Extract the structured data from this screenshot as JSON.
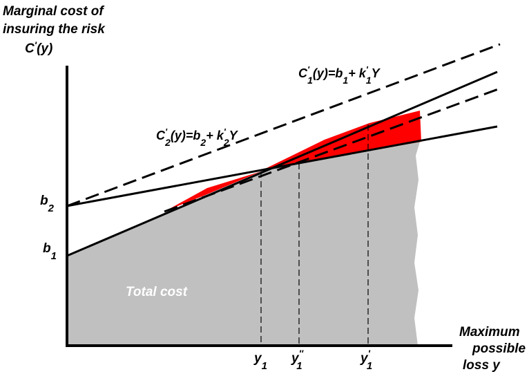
{
  "diagram": {
    "y_axis_title_line1": "Marginal cost of",
    "y_axis_title_line2": "insuring the risk",
    "y_axis_func_base": "C",
    "y_axis_func_prime": "'",
    "y_axis_func_arg": "(y)",
    "x_axis_title_line1": "Maximum",
    "x_axis_title_line2": "possible",
    "x_axis_title_line3": "loss y",
    "intercept_b2_base": "b",
    "intercept_b2_sub": "2",
    "intercept_b1_base": "b",
    "intercept_b1_sub": "1",
    "area_label": "Total cost",
    "eq1": {
      "c": "C",
      "prime": "'",
      "sub1": "1",
      "mid": "(y)=b",
      "sub2": "1",
      "plus": "+ k",
      "prime2": "'",
      "sub3": "1",
      "tail": "Y"
    },
    "eq2": {
      "c": "C",
      "prime": "'",
      "sub1": "2",
      "mid": "(y)=b",
      "sub2": "2",
      "plus": "+ k",
      "prime2": "'",
      "sub3": "2",
      "tail": "Y"
    },
    "x_tick_y1_base": "y",
    "x_tick_y1_sub": "1",
    "x_tick_y1pp_base": "y",
    "x_tick_y1pp_sup": "''",
    "x_tick_y1pp_sub": "1",
    "x_tick_y1p_base": "y",
    "x_tick_y1p_sup": "'",
    "x_tick_y1p_sub": "1"
  },
  "colors": {
    "total_cost_area": "#c0c0c0",
    "gap_area": "#ff0000",
    "lines": "#000000"
  }
}
